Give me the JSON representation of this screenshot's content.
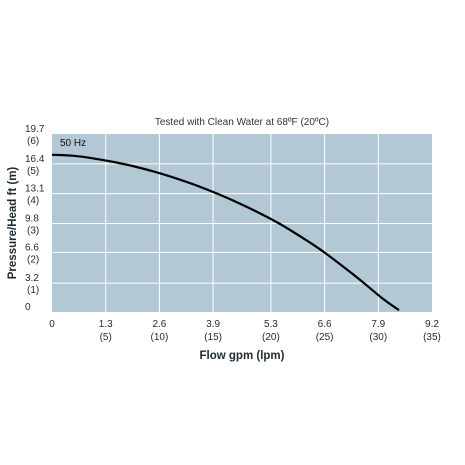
{
  "chart_data": {
    "type": "line",
    "title": "Tested with Clean Water at 68ºF (20ºC)",
    "xlabel": "Flow gpm (lpm)",
    "ylabel": "Pressure/Head ft (m)",
    "xlim": [
      0,
      9.2
    ],
    "ylim": [
      0,
      19.7
    ],
    "grid": true,
    "plot_background": "#b3c8d5",
    "grid_color": "#ffffff",
    "line_color": "#000000",
    "x_ticks": [
      {
        "value": 0,
        "label": "0",
        "sub": ""
      },
      {
        "value": 1.3,
        "label": "1.3",
        "sub": "(5)"
      },
      {
        "value": 2.6,
        "label": "2.6",
        "sub": "(10)"
      },
      {
        "value": 3.9,
        "label": "3.9",
        "sub": "(15)"
      },
      {
        "value": 5.3,
        "label": "5.3",
        "sub": "(20)"
      },
      {
        "value": 6.6,
        "label": "6.6",
        "sub": "(25)"
      },
      {
        "value": 7.9,
        "label": "7.9",
        "sub": "(30)"
      },
      {
        "value": 9.2,
        "label": "9.2",
        "sub": "(35)"
      }
    ],
    "y_ticks": [
      {
        "value": 0,
        "label": "0",
        "sub": ""
      },
      {
        "value": 3.2,
        "label": "3.2",
        "sub": "(1)"
      },
      {
        "value": 6.6,
        "label": "6.6",
        "sub": "(2)"
      },
      {
        "value": 9.8,
        "label": "9.8",
        "sub": "(3)"
      },
      {
        "value": 13.1,
        "label": "13.1",
        "sub": "(4)"
      },
      {
        "value": 16.4,
        "label": "16.4",
        "sub": "(5)"
      },
      {
        "value": 19.7,
        "label": "19.7",
        "sub": "(6)"
      }
    ],
    "series": [
      {
        "name": "50 Hz",
        "x": [
          0,
          0.5,
          1.0,
          1.5,
          2.0,
          2.5,
          3.0,
          3.5,
          4.0,
          4.5,
          5.0,
          5.5,
          6.0,
          6.5,
          7.0,
          7.5,
          8.0,
          8.4
        ],
        "y": [
          17.4,
          17.3,
          17.0,
          16.6,
          16.1,
          15.5,
          14.8,
          14.0,
          13.1,
          12.1,
          11.0,
          9.8,
          8.4,
          6.9,
          5.2,
          3.4,
          1.5,
          0.2
        ]
      }
    ]
  }
}
